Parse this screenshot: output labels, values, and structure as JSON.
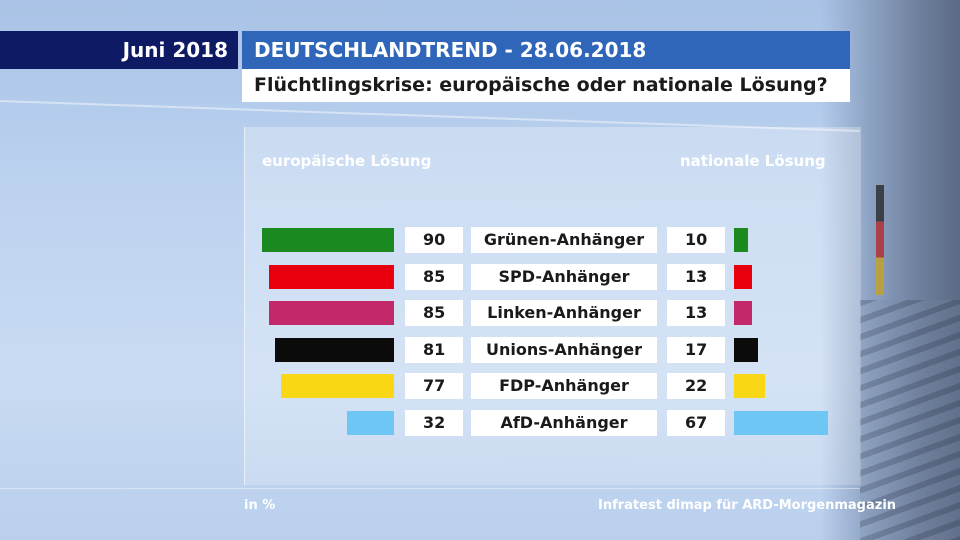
{
  "header": {
    "date_label": "Juni 2018",
    "title": "DEUTSCHLANDTREND - 28.06.2018",
    "subtitle": "Flüchtlingskrise: europäische oder nationale Lösung?"
  },
  "footer": {
    "unit": "in %",
    "source": "Infratest dimap für ARD-Morgenmagazin"
  },
  "colors": {
    "header_left_bg": "#0e1a63",
    "header_right_bg": "#2f66b9"
  },
  "chart_data": {
    "type": "bar",
    "orientation": "horizontal-diverging",
    "title": "Flüchtlingskrise: europäische oder nationale Lösung?",
    "unit": "in %",
    "left_series_label": "europäische Lösung",
    "right_series_label": "nationale Lösung",
    "categories": [
      "Grünen-Anhänger",
      "SPD-Anhänger",
      "Linken-Anhänger",
      "Unions-Anhänger",
      "FDP-Anhänger",
      "AfD-Anhänger"
    ],
    "series": [
      {
        "name": "europäische Lösung",
        "values": [
          90,
          85,
          85,
          81,
          77,
          32
        ]
      },
      {
        "name": "nationale Lösung",
        "values": [
          10,
          13,
          13,
          17,
          22,
          67
        ]
      }
    ],
    "category_colors": [
      "#1a8a1e",
      "#e8000e",
      "#c3286a",
      "#0b0b0b",
      "#fad714",
      "#6ec6f5"
    ]
  }
}
